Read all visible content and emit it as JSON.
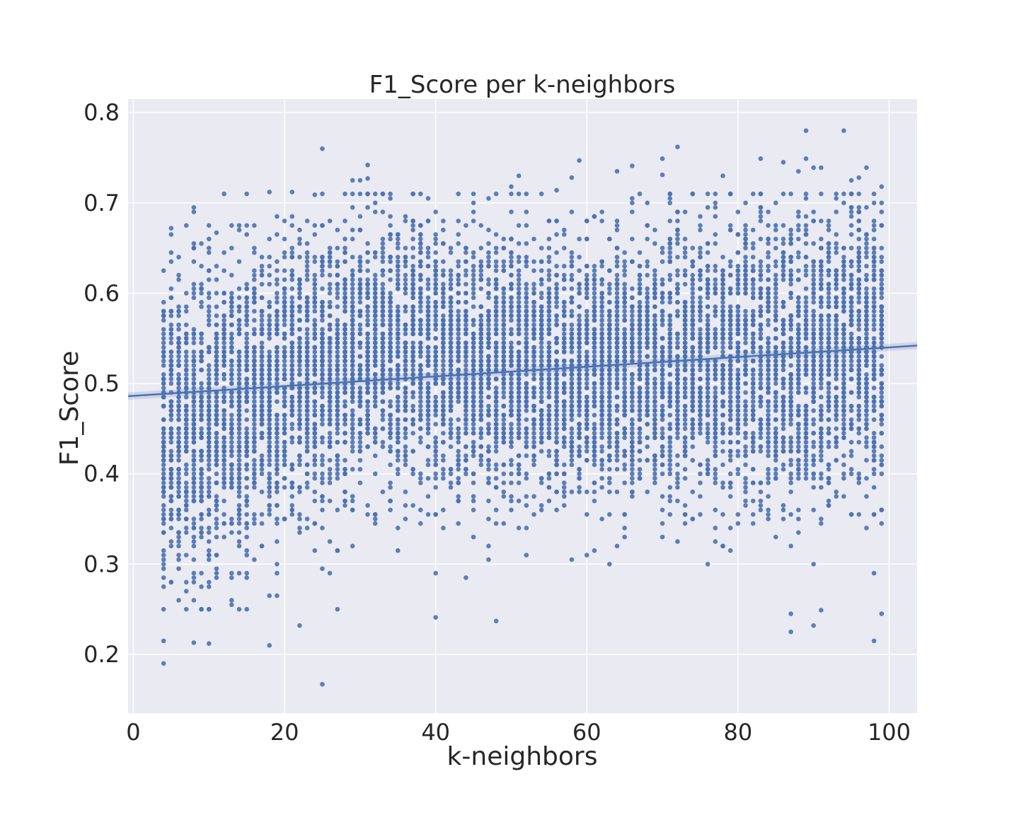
{
  "chart_data": {
    "type": "scatter",
    "title": "F1_Score per k-neighbors",
    "xlabel": "k-neighbors",
    "ylabel": "F1_Score",
    "xlim": [
      -0.7,
      103.7
    ],
    "ylim": [
      0.135,
      0.815
    ],
    "x_ticks": [
      0,
      20,
      40,
      60,
      80,
      100
    ],
    "x_tick_labels": [
      "0",
      "20",
      "40",
      "60",
      "80",
      "100"
    ],
    "y_ticks": [
      0.2,
      0.3,
      0.4,
      0.5,
      0.6,
      0.7,
      0.8
    ],
    "y_tick_labels": [
      "0.2",
      "0.3",
      "0.4",
      "0.5",
      "0.6",
      "0.7",
      "0.8"
    ],
    "grid": true,
    "background": "#eaeaf2",
    "point_color": "#4c72b0",
    "line_color": "#4c72b0",
    "x_values": {
      "start": 4,
      "end": 99,
      "step": 1
    },
    "regression_line": {
      "x": [
        -0.7,
        103.7
      ],
      "y": [
        0.486,
        0.542
      ]
    },
    "regression_ci_halfwidth": 0.004,
    "per_k_distribution": [
      {
        "k": 4,
        "mean": 0.452,
        "sd": 0.085
      },
      {
        "k": 10,
        "mean": 0.46,
        "sd": 0.085
      },
      {
        "k": 20,
        "mean": 0.5,
        "sd": 0.078
      },
      {
        "k": 30,
        "mean": 0.53,
        "sd": 0.07
      },
      {
        "k": 40,
        "mean": 0.53,
        "sd": 0.072
      },
      {
        "k": 50,
        "mean": 0.515,
        "sd": 0.07
      },
      {
        "k": 60,
        "mean": 0.515,
        "sd": 0.068
      },
      {
        "k": 70,
        "mean": 0.52,
        "sd": 0.07
      },
      {
        "k": 80,
        "mean": 0.525,
        "sd": 0.075
      },
      {
        "k": 90,
        "mean": 0.53,
        "sd": 0.078
      },
      {
        "k": 99,
        "mean": 0.54,
        "sd": 0.075
      }
    ],
    "points_per_k": 90,
    "outliers": [
      {
        "x": 4,
        "y": 0.19
      },
      {
        "x": 4,
        "y": 0.215
      },
      {
        "x": 5,
        "y": 0.672
      },
      {
        "x": 5,
        "y": 0.645
      },
      {
        "x": 7,
        "y": 0.675
      },
      {
        "x": 8,
        "y": 0.213
      },
      {
        "x": 10,
        "y": 0.212
      },
      {
        "x": 10,
        "y": 0.675
      },
      {
        "x": 11,
        "y": 0.667
      },
      {
        "x": 18,
        "y": 0.712
      },
      {
        "x": 18,
        "y": 0.21
      },
      {
        "x": 21,
        "y": 0.712
      },
      {
        "x": 22,
        "y": 0.232
      },
      {
        "x": 24,
        "y": 0.709
      },
      {
        "x": 25,
        "y": 0.76
      },
      {
        "x": 25,
        "y": 0.167
      },
      {
        "x": 29,
        "y": 0.725
      },
      {
        "x": 30,
        "y": 0.725
      },
      {
        "x": 31,
        "y": 0.742
      },
      {
        "x": 31,
        "y": 0.727
      },
      {
        "x": 40,
        "y": 0.241
      },
      {
        "x": 39,
        "y": 0.705
      },
      {
        "x": 48,
        "y": 0.237
      },
      {
        "x": 51,
        "y": 0.73
      },
      {
        "x": 50,
        "y": 0.718
      },
      {
        "x": 56,
        "y": 0.714
      },
      {
        "x": 58,
        "y": 0.728
      },
      {
        "x": 59,
        "y": 0.747
      },
      {
        "x": 64,
        "y": 0.735
      },
      {
        "x": 66,
        "y": 0.741
      },
      {
        "x": 70,
        "y": 0.749
      },
      {
        "x": 70,
        "y": 0.731
      },
      {
        "x": 72,
        "y": 0.762
      },
      {
        "x": 78,
        "y": 0.73
      },
      {
        "x": 83,
        "y": 0.749
      },
      {
        "x": 86,
        "y": 0.745
      },
      {
        "x": 87,
        "y": 0.225
      },
      {
        "x": 87,
        "y": 0.245
      },
      {
        "x": 88,
        "y": 0.735
      },
      {
        "x": 89,
        "y": 0.78
      },
      {
        "x": 89,
        "y": 0.749
      },
      {
        "x": 90,
        "y": 0.739
      },
      {
        "x": 90,
        "y": 0.232
      },
      {
        "x": 91,
        "y": 0.739
      },
      {
        "x": 91,
        "y": 0.249
      },
      {
        "x": 94,
        "y": 0.78
      },
      {
        "x": 95,
        "y": 0.725
      },
      {
        "x": 96,
        "y": 0.728
      },
      {
        "x": 97,
        "y": 0.739
      },
      {
        "x": 98,
        "y": 0.215
      },
      {
        "x": 99,
        "y": 0.245
      },
      {
        "x": 99,
        "y": 0.718
      }
    ]
  }
}
